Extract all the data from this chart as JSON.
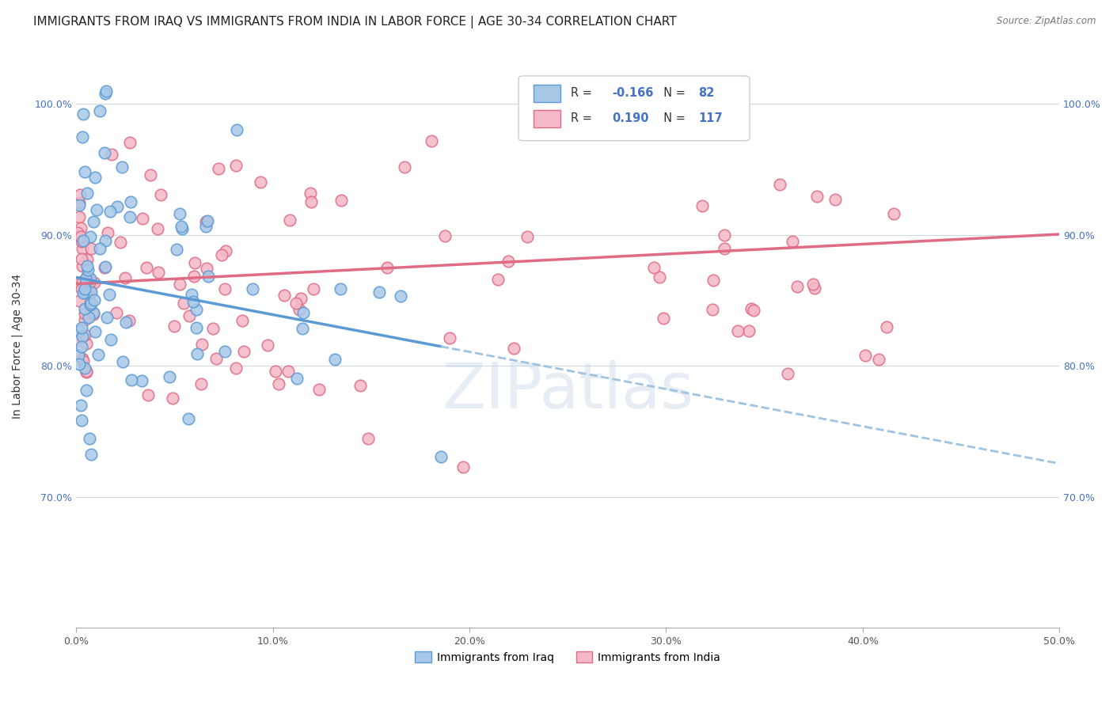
{
  "title": "IMMIGRANTS FROM IRAQ VS IMMIGRANTS FROM INDIA IN LABOR FORCE | AGE 30-34 CORRELATION CHART",
  "source": "Source: ZipAtlas.com",
  "ylabel": "In Labor Force | Age 30-34",
  "xlim": [
    0.0,
    0.5
  ],
  "ylim": [
    0.6,
    1.03
  ],
  "yticks": [
    0.7,
    0.8,
    0.9,
    1.0
  ],
  "ytick_labels": [
    "70.0%",
    "80.0%",
    "90.0%",
    "100.0%"
  ],
  "xticks": [
    0.0,
    0.1,
    0.2,
    0.3,
    0.4,
    0.5
  ],
  "xtick_labels": [
    "0.0%",
    "10.0%",
    "20.0%",
    "30.0%",
    "40.0%",
    "50.0%"
  ],
  "iraq_color": "#a8c8e8",
  "iraq_edge_color": "#5b9bd5",
  "india_color": "#f4b8c8",
  "india_edge_color": "#e06c84",
  "iraq_R": -0.166,
  "iraq_N": 82,
  "india_R": 0.19,
  "india_N": 117,
  "iraq_line_color": "#5b9bd5",
  "india_line_color": "#e06c84",
  "iraq_dash_color": "#a0c4e0",
  "watermark": "ZIPatlas",
  "legend_iraq_label": "Immigrants from Iraq",
  "legend_india_label": "Immigrants from India",
  "background_color": "#ffffff",
  "grid_color": "#d0d8e0",
  "title_fontsize": 11,
  "axis_fontsize": 10,
  "tick_fontsize": 9,
  "iraq_seed": 42,
  "india_seed": 99
}
